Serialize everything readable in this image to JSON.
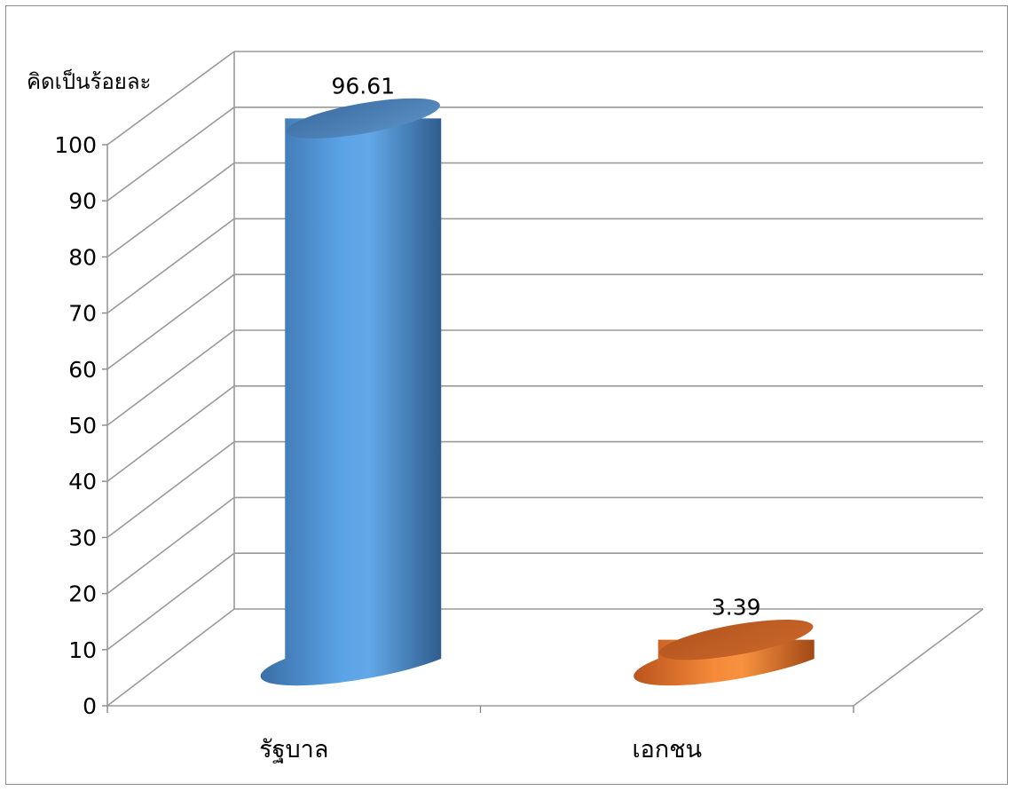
{
  "chart_data": {
    "type": "bar",
    "style": "3d-cylinder",
    "ylabel": "คิดเป็นร้อยละ",
    "xlabel": "",
    "title": "",
    "ylim": [
      0,
      100
    ],
    "yticks": [
      0,
      10,
      20,
      30,
      40,
      50,
      60,
      70,
      80,
      90,
      100
    ],
    "categories": [
      "รัฐบาล",
      "เอกชน"
    ],
    "values": [
      96.61,
      3.39
    ],
    "data_labels": [
      "96.61",
      "3.39"
    ],
    "colors": [
      "#5b9bd5",
      "#ed7d31"
    ],
    "grid": true,
    "legend": "none"
  }
}
